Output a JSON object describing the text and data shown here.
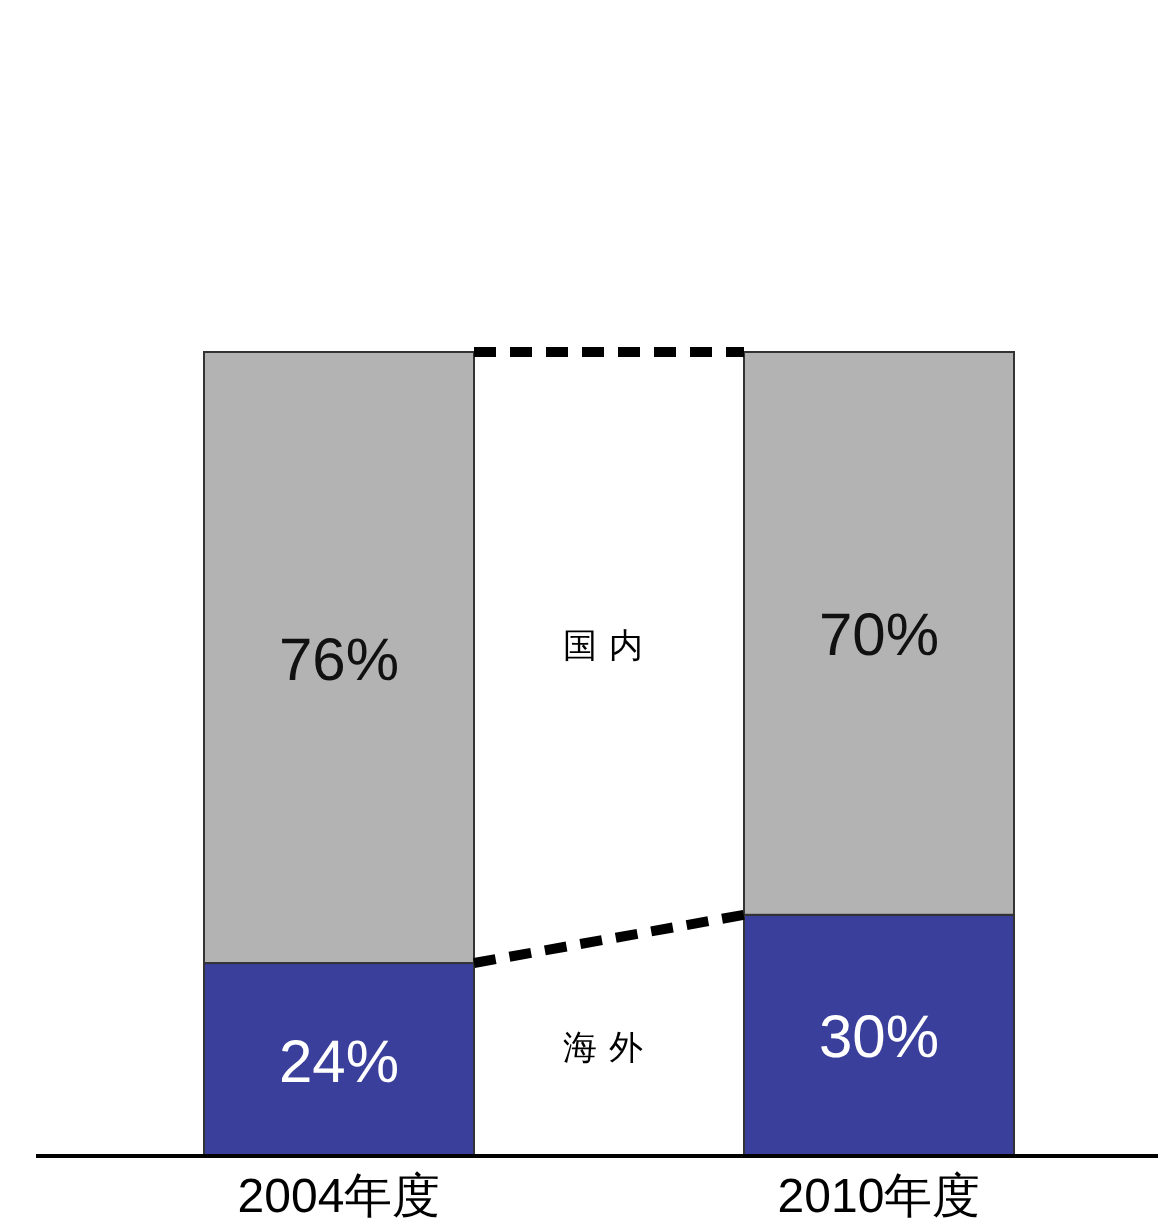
{
  "chart_data": {
    "type": "bar",
    "stacked": true,
    "categories": [
      "2004年度",
      "2010年度"
    ],
    "series": [
      {
        "name": "海外",
        "color": "#3a3f9c",
        "values": [
          24,
          30
        ],
        "value_labels": [
          "24%",
          "30%"
        ]
      },
      {
        "name": "国内",
        "color": "#b3b3b3",
        "values": [
          76,
          70
        ],
        "value_labels": [
          "76%",
          "70%"
        ]
      }
    ]
  }
}
